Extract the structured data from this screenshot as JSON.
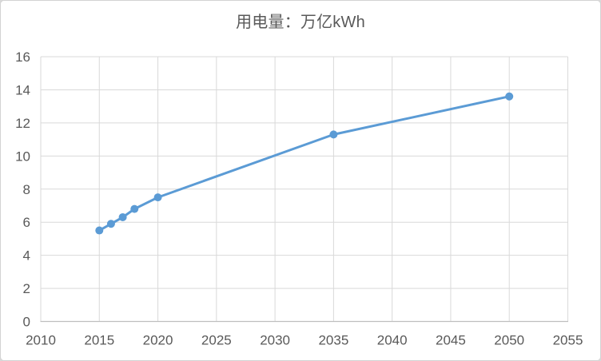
{
  "chart_data": {
    "type": "line",
    "title": "用电量：万亿kWh",
    "x": [
      2015,
      2016,
      2017,
      2018,
      2020,
      2035,
      2050
    ],
    "values": [
      5.5,
      5.9,
      6.3,
      6.8,
      7.5,
      11.3,
      13.6
    ],
    "series": [
      {
        "name": "用电量",
        "x": [
          2015,
          2016,
          2017,
          2018,
          2020,
          2035,
          2050
        ],
        "values": [
          5.5,
          5.9,
          6.3,
          6.8,
          7.5,
          11.3,
          13.6
        ]
      }
    ],
    "xlabel": "",
    "ylabel": "",
    "xlim": [
      2010,
      2055
    ],
    "ylim": [
      0,
      16
    ],
    "x_ticks": [
      "2010",
      "2015",
      "2020",
      "2025",
      "2030",
      "2035",
      "2040",
      "2045",
      "2050",
      "2055"
    ],
    "y_ticks": [
      "0",
      "2",
      "4",
      "6",
      "8",
      "10",
      "12",
      "14",
      "16"
    ],
    "grid": "on",
    "legend": "none",
    "marker": "circle"
  },
  "colors": {
    "series_line": "#5b9bd5",
    "marker_fill": "#5b9bd5",
    "gridline": "#d9d9d9",
    "axis_line": "#bfbfbf",
    "tick_label": "#595959",
    "title_text": "#595959",
    "frame_border": "#d2d2d2",
    "chart_background": "#ffffff",
    "page_background": "#d9d9d9"
  }
}
